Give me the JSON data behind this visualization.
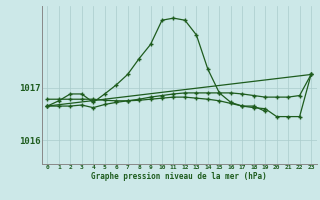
{
  "title": "Graphe pression niveau de la mer (hPa)",
  "bg_color": "#cce8e8",
  "grid_color": "#aacccc",
  "line_color": "#1e5c1e",
  "xlim": [
    -0.5,
    23.5
  ],
  "ylim": [
    1015.55,
    1018.55
  ],
  "xticks": [
    0,
    1,
    2,
    3,
    4,
    5,
    6,
    7,
    8,
    9,
    10,
    11,
    12,
    13,
    14,
    15,
    16,
    17,
    18,
    19,
    20,
    21,
    22,
    23
  ],
  "ytick_positions": [
    1016,
    1017
  ],
  "ytick_labels": [
    "1016",
    "1017"
  ],
  "series": [
    {
      "x": [
        0,
        1,
        2,
        3,
        4,
        5,
        6,
        7,
        8,
        9,
        10,
        11,
        12,
        13,
        14,
        15,
        16,
        17,
        18,
        19
      ],
      "y": [
        1016.65,
        1016.75,
        1016.88,
        1016.88,
        1016.72,
        1016.88,
        1017.05,
        1017.25,
        1017.55,
        1017.82,
        1018.28,
        1018.32,
        1018.28,
        1018.0,
        1017.35,
        1016.9,
        1016.72,
        1016.65,
        1016.65,
        1016.55
      ]
    },
    {
      "x": [
        0,
        23
      ],
      "y": [
        1016.65,
        1017.25
      ]
    },
    {
      "x": [
        0,
        1,
        2,
        3,
        4,
        5,
        6,
        7,
        8,
        9,
        10,
        11,
        12,
        13,
        14,
        15,
        16,
        17,
        18,
        19,
        20,
        21,
        22,
        23
      ],
      "y": [
        1016.65,
        1016.65,
        1016.65,
        1016.67,
        1016.62,
        1016.68,
        1016.72,
        1016.75,
        1016.78,
        1016.82,
        1016.85,
        1016.88,
        1016.9,
        1016.9,
        1016.9,
        1016.9,
        1016.9,
        1016.88,
        1016.85,
        1016.82,
        1016.82,
        1016.82,
        1016.85,
        1017.25
      ]
    },
    {
      "x": [
        0,
        1,
        2,
        3,
        4,
        5,
        6,
        7,
        8,
        9,
        10,
        11,
        12,
        13,
        14,
        15,
        16,
        17,
        18,
        19,
        20,
        21,
        22,
        23
      ],
      "y": [
        1016.78,
        1016.78,
        1016.78,
        1016.78,
        1016.78,
        1016.76,
        1016.75,
        1016.75,
        1016.76,
        1016.78,
        1016.8,
        1016.82,
        1016.82,
        1016.8,
        1016.78,
        1016.75,
        1016.7,
        1016.65,
        1016.62,
        1016.6,
        1016.45,
        1016.45,
        1016.45,
        1017.25
      ]
    }
  ]
}
